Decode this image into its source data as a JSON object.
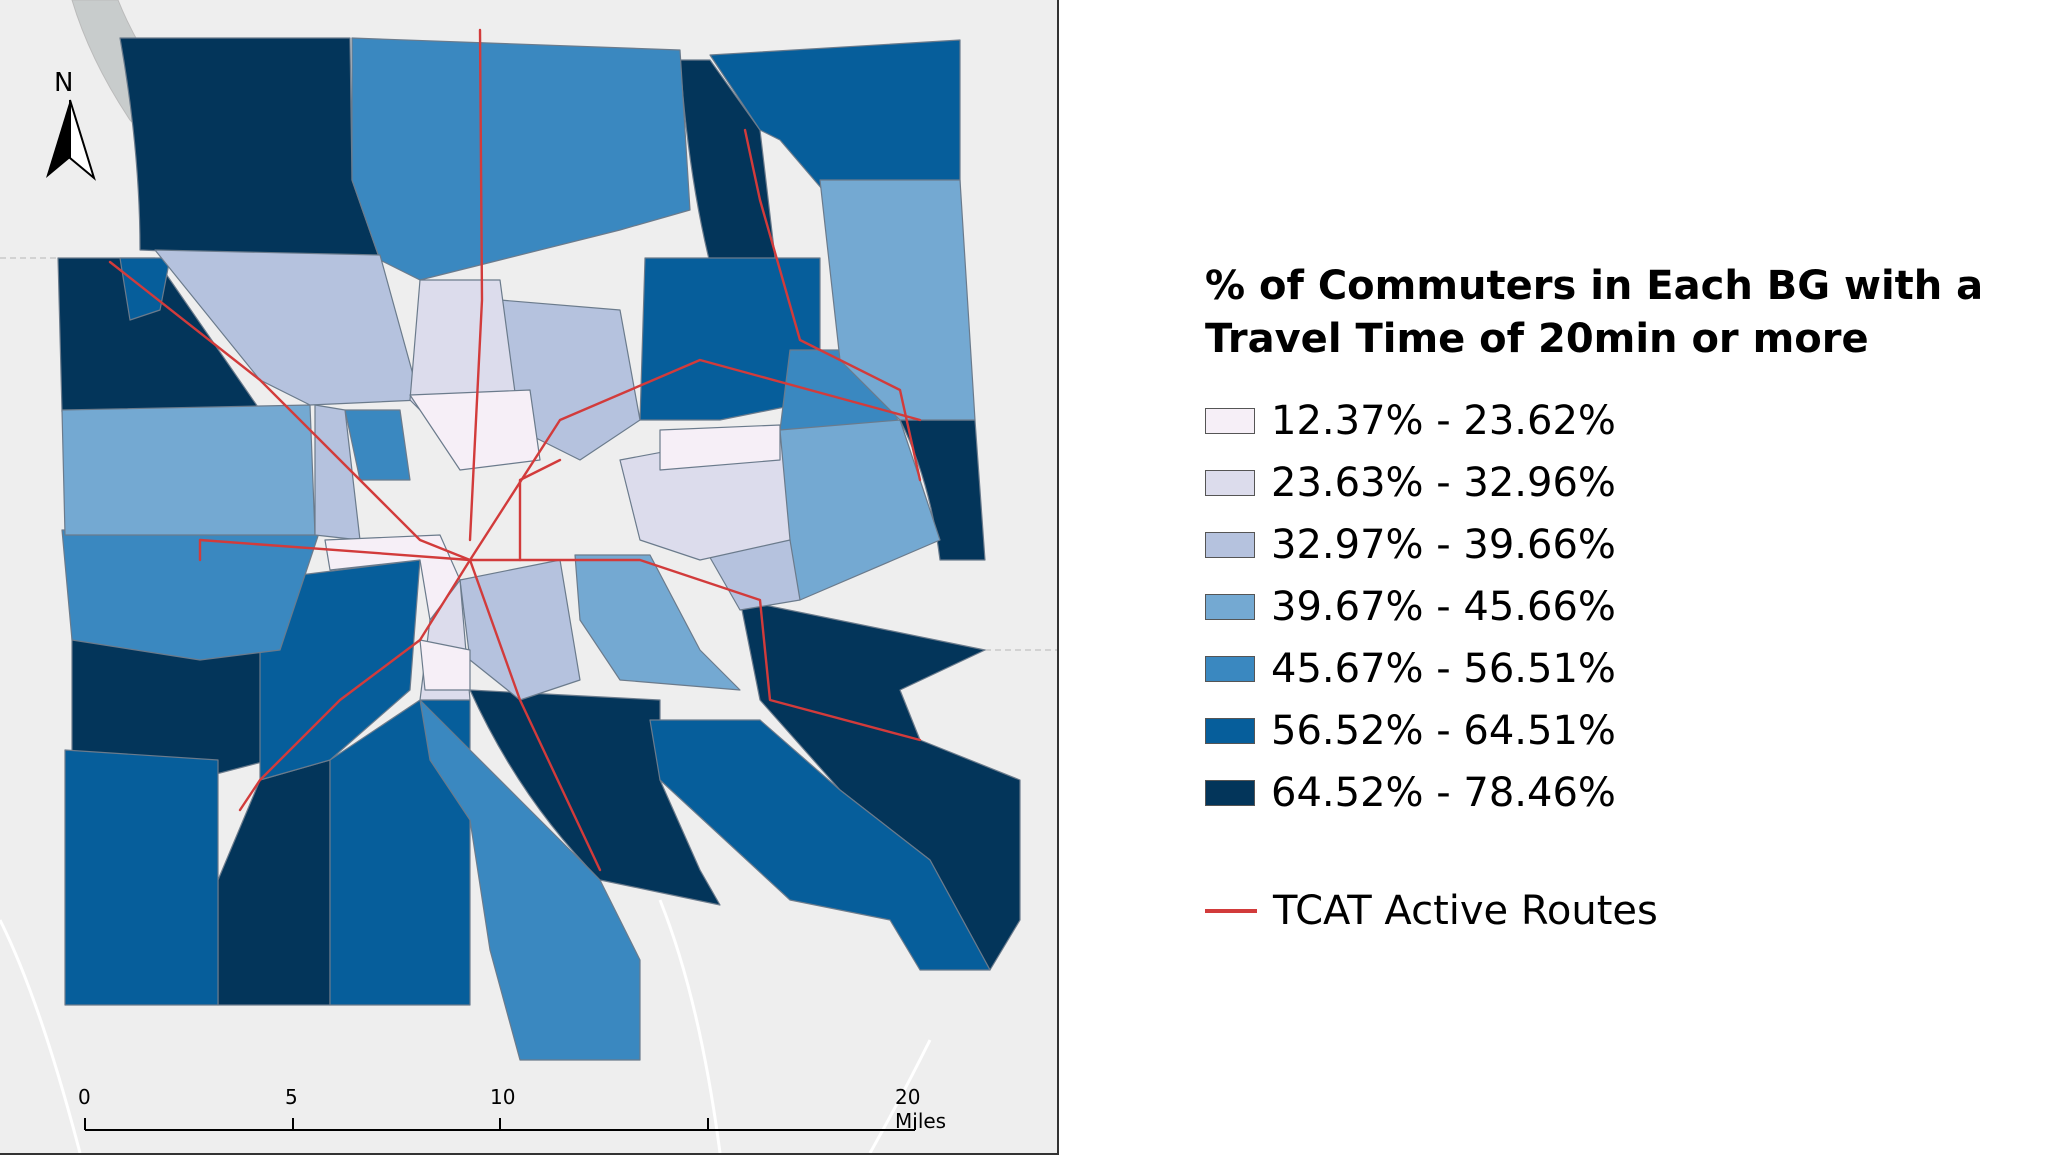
{
  "legend": {
    "title_line1": "% of Commuters in Each BG with a",
    "title_line2": "Travel Time of 20min or more",
    "classes": [
      {
        "label": "12.37% - 23.62%",
        "color": "#f6eff7"
      },
      {
        "label": "23.63% - 32.96%",
        "color": "#dcdcec"
      },
      {
        "label": "32.97% - 39.66%",
        "color": "#b5c2de"
      },
      {
        "label": "39.67% - 45.66%",
        "color": "#74a9d2"
      },
      {
        "label": "45.67% - 56.51%",
        "color": "#3a88c0"
      },
      {
        "label": "56.52% - 64.51%",
        "color": "#065e9b"
      },
      {
        "label": "64.52% - 78.46%",
        "color": "#03355a"
      }
    ],
    "route_label": "TCAT Active Routes",
    "route_color": "#d23b3b"
  },
  "north_arrow": {
    "letter": "N"
  },
  "scalebar": {
    "ticks": [
      "0",
      "5",
      "10",
      "20 Miles"
    ]
  },
  "icons": [
    "north-arrow-icon"
  ]
}
